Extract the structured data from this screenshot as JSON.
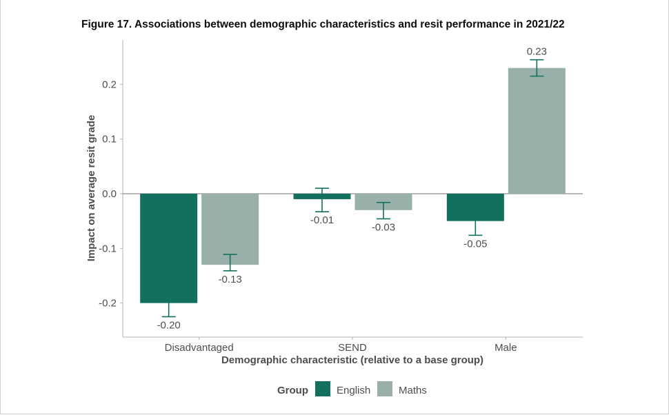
{
  "figure": {
    "title": "Figure 17. Associations between demographic characteristics and resit performance in 2021/22"
  },
  "colors": {
    "English": "#12705e",
    "Maths": "#98b0a9",
    "errorbar": "#12705e",
    "axis": "#b3b3b3",
    "zero_line": "#8c8c8c"
  },
  "chart_data": {
    "type": "bar",
    "categories": [
      "Disadvantaged",
      "SEND",
      "Male"
    ],
    "series": [
      {
        "name": "English",
        "values": [
          -0.2,
          -0.01,
          -0.05
        ],
        "labels": [
          "-0.20",
          "-0.01",
          "-0.05"
        ],
        "ci_low": [
          -0.225,
          -0.033,
          -0.076
        ],
        "ci_high": [
          -0.182,
          0.01,
          -0.033
        ]
      },
      {
        "name": "Maths",
        "values": [
          -0.13,
          -0.03,
          0.23
        ],
        "labels": [
          "-0.13",
          "-0.03",
          "0.23"
        ],
        "ci_low": [
          -0.141,
          -0.046,
          0.215
        ],
        "ci_high": [
          -0.111,
          -0.016,
          0.245
        ]
      }
    ],
    "xlabel": "Demographic characteristic (relative to a base group)",
    "ylabel": "Impact on average resit grade",
    "ylim": [
      -0.26,
      0.285
    ],
    "yticks": [
      -0.2,
      -0.1,
      0.0,
      0.1,
      0.2
    ],
    "ytick_labels": [
      "-0.2",
      "-0.1",
      "0.0",
      "0.1",
      "0.2"
    ],
    "legend_title": "Group",
    "legend_position": "bottom",
    "grid": false
  }
}
